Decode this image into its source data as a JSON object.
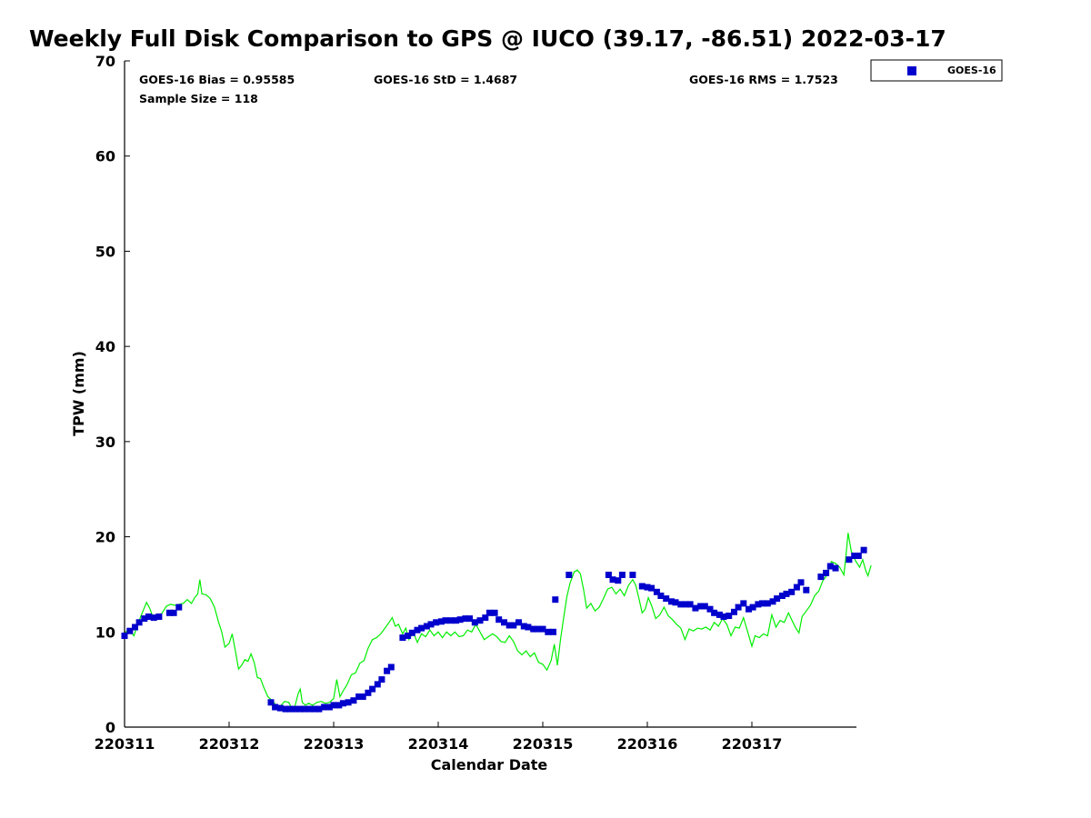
{
  "chart_data": {
    "type": "scatter",
    "title": "Weekly Full Disk Comparison to GPS @ IUCO (39.17, -86.51) 2022-03-17",
    "xlabel": "Calendar Date",
    "ylabel": "TPW (mm)",
    "ylim": [
      0,
      70
    ],
    "yticks": [
      0,
      10,
      20,
      30,
      40,
      50,
      60,
      70
    ],
    "xlim": [
      "220311",
      "220317 ~23:00"
    ],
    "xticks": [
      "220311",
      "220312",
      "220313",
      "220314",
      "220315",
      "220316",
      "220317"
    ],
    "grid": false,
    "legend_position": "upper-right-outside",
    "stats": {
      "bias": "GOES-16 Bias = 0.95585",
      "std": "GOES-16 StD = 1.4687",
      "rms": "GOES-16 RMS = 1.7523",
      "sample": "Sample Size = 118"
    },
    "series": [
      {
        "name": "GOES-16",
        "style": "square-markers",
        "color": "#0000cc",
        "points": [
          [
            0.0,
            9.6
          ],
          [
            0.05,
            10.1
          ],
          [
            0.1,
            10.5
          ],
          [
            0.14,
            11.0
          ],
          [
            0.19,
            11.4
          ],
          [
            0.23,
            11.6
          ],
          [
            0.28,
            11.5
          ],
          [
            0.33,
            11.6
          ],
          [
            0.43,
            12.0
          ],
          [
            0.47,
            12.0
          ],
          [
            0.52,
            12.6
          ],
          [
            1.4,
            2.6
          ],
          [
            1.44,
            2.1
          ],
          [
            1.49,
            2.0
          ],
          [
            1.54,
            1.9
          ],
          [
            1.58,
            1.9
          ],
          [
            1.63,
            1.9
          ],
          [
            1.68,
            1.9
          ],
          [
            1.72,
            1.9
          ],
          [
            1.77,
            1.9
          ],
          [
            1.82,
            1.9
          ],
          [
            1.86,
            1.9
          ],
          [
            1.91,
            2.1
          ],
          [
            1.96,
            2.1
          ],
          [
            2.0,
            2.3
          ],
          [
            2.05,
            2.3
          ],
          [
            2.09,
            2.5
          ],
          [
            2.14,
            2.6
          ],
          [
            2.19,
            2.8
          ],
          [
            2.24,
            3.2
          ],
          [
            2.28,
            3.2
          ],
          [
            2.33,
            3.6
          ],
          [
            2.37,
            4.0
          ],
          [
            2.42,
            4.5
          ],
          [
            2.46,
            5.0
          ],
          [
            2.51,
            5.9
          ],
          [
            2.55,
            6.3
          ],
          [
            2.66,
            9.4
          ],
          [
            2.71,
            9.6
          ],
          [
            2.75,
            9.9
          ],
          [
            2.8,
            10.2
          ],
          [
            2.84,
            10.4
          ],
          [
            2.89,
            10.6
          ],
          [
            2.93,
            10.8
          ],
          [
            2.98,
            11.0
          ],
          [
            3.03,
            11.1
          ],
          [
            3.07,
            11.2
          ],
          [
            3.12,
            11.2
          ],
          [
            3.17,
            11.2
          ],
          [
            3.21,
            11.3
          ],
          [
            3.26,
            11.4
          ],
          [
            3.3,
            11.4
          ],
          [
            3.35,
            11.0
          ],
          [
            3.4,
            11.2
          ],
          [
            3.45,
            11.5
          ],
          [
            3.49,
            12.0
          ],
          [
            3.54,
            12.0
          ],
          [
            3.58,
            11.3
          ],
          [
            3.63,
            11.0
          ],
          [
            3.68,
            10.7
          ],
          [
            3.72,
            10.7
          ],
          [
            3.77,
            11.0
          ],
          [
            3.82,
            10.6
          ],
          [
            3.86,
            10.5
          ],
          [
            3.91,
            10.3
          ],
          [
            3.95,
            10.3
          ],
          [
            4.0,
            10.3
          ],
          [
            4.05,
            10.0
          ],
          [
            4.1,
            10.0
          ],
          [
            4.12,
            13.4
          ],
          [
            4.25,
            16.0
          ],
          [
            4.63,
            16.0
          ],
          [
            4.67,
            15.5
          ],
          [
            4.72,
            15.4
          ],
          [
            4.76,
            16.0
          ],
          [
            4.86,
            16.0
          ],
          [
            4.95,
            14.8
          ],
          [
            5.0,
            14.7
          ],
          [
            5.04,
            14.6
          ],
          [
            5.09,
            14.2
          ],
          [
            5.13,
            13.8
          ],
          [
            5.18,
            13.5
          ],
          [
            5.23,
            13.2
          ],
          [
            5.27,
            13.1
          ],
          [
            5.32,
            12.9
          ],
          [
            5.37,
            12.9
          ],
          [
            5.41,
            12.9
          ],
          [
            5.46,
            12.5
          ],
          [
            5.51,
            12.7
          ],
          [
            5.55,
            12.7
          ],
          [
            5.6,
            12.4
          ],
          [
            5.64,
            12.0
          ],
          [
            5.69,
            11.8
          ],
          [
            5.73,
            11.6
          ],
          [
            5.78,
            11.7
          ],
          [
            5.83,
            12.1
          ],
          [
            5.87,
            12.6
          ],
          [
            5.92,
            13.0
          ],
          [
            5.97,
            12.4
          ],
          [
            6.01,
            12.6
          ],
          [
            6.06,
            12.9
          ],
          [
            6.1,
            13.0
          ],
          [
            6.15,
            13.0
          ],
          [
            6.2,
            13.2
          ],
          [
            6.24,
            13.5
          ],
          [
            6.29,
            13.8
          ],
          [
            6.33,
            14.0
          ],
          [
            6.38,
            14.2
          ],
          [
            6.43,
            14.7
          ],
          [
            6.47,
            15.2
          ],
          [
            6.52,
            14.4
          ],
          [
            6.66,
            15.8
          ],
          [
            6.71,
            16.2
          ],
          [
            6.75,
            16.9
          ],
          [
            6.8,
            16.7
          ],
          [
            6.93,
            17.6
          ],
          [
            6.98,
            18.0
          ],
          [
            7.02,
            18.0
          ],
          [
            7.07,
            18.6
          ]
        ]
      },
      {
        "name": "",
        "style": "line",
        "color": "#00ee00",
        "points": [
          [
            0.0,
            9.8
          ],
          [
            0.03,
            10.2
          ],
          [
            0.06,
            10.0
          ],
          [
            0.09,
            9.6
          ],
          [
            0.12,
            10.6
          ],
          [
            0.15,
            11.5
          ],
          [
            0.18,
            12.3
          ],
          [
            0.21,
            13.1
          ],
          [
            0.24,
            12.5
          ],
          [
            0.27,
            11.6
          ],
          [
            0.3,
            11.8
          ],
          [
            0.33,
            11.4
          ],
          [
            0.36,
            12.0
          ],
          [
            0.4,
            12.7
          ],
          [
            0.44,
            12.9
          ],
          [
            0.48,
            12.8
          ],
          [
            0.52,
            12.9
          ],
          [
            0.56,
            13.0
          ],
          [
            0.6,
            13.4
          ],
          [
            0.64,
            13.0
          ],
          [
            0.67,
            13.6
          ],
          [
            0.7,
            14.0
          ],
          [
            0.72,
            15.5
          ],
          [
            0.74,
            14.0
          ],
          [
            0.78,
            13.9
          ],
          [
            0.82,
            13.5
          ],
          [
            0.86,
            12.6
          ],
          [
            0.9,
            11.0
          ],
          [
            0.93,
            10.0
          ],
          [
            0.96,
            8.4
          ],
          [
            1.0,
            8.8
          ],
          [
            1.03,
            9.8
          ],
          [
            1.06,
            8.0
          ],
          [
            1.09,
            6.1
          ],
          [
            1.12,
            6.5
          ],
          [
            1.15,
            7.1
          ],
          [
            1.18,
            6.9
          ],
          [
            1.21,
            7.7
          ],
          [
            1.24,
            6.8
          ],
          [
            1.27,
            5.2
          ],
          [
            1.3,
            5.1
          ],
          [
            1.33,
            4.2
          ],
          [
            1.37,
            3.2
          ],
          [
            1.41,
            2.8
          ],
          [
            1.45,
            2.3
          ],
          [
            1.49,
            2.2
          ],
          [
            1.53,
            2.7
          ],
          [
            1.57,
            2.6
          ],
          [
            1.6,
            2.0
          ],
          [
            1.63,
            2.2
          ],
          [
            1.66,
            3.5
          ],
          [
            1.68,
            4.0
          ],
          [
            1.7,
            2.6
          ],
          [
            1.73,
            2.3
          ],
          [
            1.76,
            2.5
          ],
          [
            1.8,
            2.3
          ],
          [
            1.84,
            2.6
          ],
          [
            1.88,
            2.7
          ],
          [
            1.92,
            2.5
          ],
          [
            1.96,
            2.6
          ],
          [
            2.0,
            3.0
          ],
          [
            2.03,
            5.0
          ],
          [
            2.06,
            3.2
          ],
          [
            2.09,
            3.8
          ],
          [
            2.13,
            4.5
          ],
          [
            2.17,
            5.5
          ],
          [
            2.21,
            5.7
          ],
          [
            2.25,
            6.7
          ],
          [
            2.29,
            7.0
          ],
          [
            2.33,
            8.3
          ],
          [
            2.37,
            9.2
          ],
          [
            2.41,
            9.4
          ],
          [
            2.45,
            9.8
          ],
          [
            2.49,
            10.4
          ],
          [
            2.53,
            11.0
          ],
          [
            2.56,
            11.5
          ],
          [
            2.59,
            10.6
          ],
          [
            2.62,
            10.8
          ],
          [
            2.66,
            9.8
          ],
          [
            2.69,
            10.4
          ],
          [
            2.72,
            9.2
          ],
          [
            2.76,
            10.0
          ],
          [
            2.8,
            8.9
          ],
          [
            2.84,
            9.8
          ],
          [
            2.88,
            9.5
          ],
          [
            2.92,
            10.2
          ],
          [
            2.96,
            9.6
          ],
          [
            3.0,
            10.0
          ],
          [
            3.04,
            9.4
          ],
          [
            3.08,
            10.0
          ],
          [
            3.12,
            9.6
          ],
          [
            3.16,
            10.0
          ],
          [
            3.2,
            9.5
          ],
          [
            3.24,
            9.6
          ],
          [
            3.28,
            10.2
          ],
          [
            3.32,
            10.0
          ],
          [
            3.36,
            10.8
          ],
          [
            3.4,
            10.0
          ],
          [
            3.44,
            9.2
          ],
          [
            3.48,
            9.5
          ],
          [
            3.52,
            9.8
          ],
          [
            3.56,
            9.5
          ],
          [
            3.6,
            9.0
          ],
          [
            3.64,
            8.9
          ],
          [
            3.68,
            9.6
          ],
          [
            3.72,
            9.0
          ],
          [
            3.76,
            8.0
          ],
          [
            3.8,
            7.6
          ],
          [
            3.84,
            8.0
          ],
          [
            3.88,
            7.4
          ],
          [
            3.92,
            7.8
          ],
          [
            3.96,
            6.8
          ],
          [
            4.0,
            6.6
          ],
          [
            4.04,
            6.0
          ],
          [
            4.08,
            7.0
          ],
          [
            4.11,
            8.7
          ],
          [
            4.14,
            6.5
          ],
          [
            4.17,
            9.2
          ],
          [
            4.2,
            11.5
          ],
          [
            4.23,
            13.7
          ],
          [
            4.26,
            15.1
          ],
          [
            4.3,
            16.3
          ],
          [
            4.33,
            16.5
          ],
          [
            4.36,
            16.1
          ],
          [
            4.39,
            14.5
          ],
          [
            4.42,
            12.5
          ],
          [
            4.46,
            13.0
          ],
          [
            4.5,
            12.2
          ],
          [
            4.54,
            12.6
          ],
          [
            4.58,
            13.5
          ],
          [
            4.62,
            14.5
          ],
          [
            4.66,
            14.7
          ],
          [
            4.7,
            14.0
          ],
          [
            4.74,
            14.5
          ],
          [
            4.78,
            13.8
          ],
          [
            4.82,
            14.9
          ],
          [
            4.86,
            15.5
          ],
          [
            4.89,
            14.9
          ],
          [
            4.92,
            13.5
          ],
          [
            4.95,
            12.0
          ],
          [
            4.98,
            12.4
          ],
          [
            5.01,
            13.6
          ],
          [
            5.04,
            12.8
          ],
          [
            5.08,
            11.4
          ],
          [
            5.12,
            11.8
          ],
          [
            5.16,
            12.6
          ],
          [
            5.2,
            11.7
          ],
          [
            5.24,
            11.3
          ],
          [
            5.28,
            10.8
          ],
          [
            5.32,
            10.4
          ],
          [
            5.36,
            9.2
          ],
          [
            5.4,
            10.3
          ],
          [
            5.44,
            10.1
          ],
          [
            5.48,
            10.4
          ],
          [
            5.52,
            10.3
          ],
          [
            5.56,
            10.5
          ],
          [
            5.6,
            10.2
          ],
          [
            5.64,
            11.0
          ],
          [
            5.68,
            10.6
          ],
          [
            5.72,
            11.4
          ],
          [
            5.76,
            10.8
          ],
          [
            5.8,
            9.6
          ],
          [
            5.84,
            10.5
          ],
          [
            5.88,
            10.4
          ],
          [
            5.92,
            11.5
          ],
          [
            5.96,
            10.0
          ],
          [
            6.0,
            8.5
          ],
          [
            6.03,
            9.6
          ],
          [
            6.07,
            9.4
          ],
          [
            6.11,
            9.8
          ],
          [
            6.15,
            9.6
          ],
          [
            6.19,
            11.8
          ],
          [
            6.23,
            10.5
          ],
          [
            6.27,
            11.2
          ],
          [
            6.31,
            11.0
          ],
          [
            6.35,
            12.0
          ],
          [
            6.38,
            11.3
          ],
          [
            6.42,
            10.4
          ],
          [
            6.45,
            9.9
          ],
          [
            6.48,
            11.6
          ],
          [
            6.52,
            12.2
          ],
          [
            6.56,
            12.8
          ],
          [
            6.6,
            13.8
          ],
          [
            6.64,
            14.3
          ],
          [
            6.68,
            15.4
          ],
          [
            6.72,
            16.0
          ],
          [
            6.76,
            17.4
          ],
          [
            6.8,
            17.2
          ],
          [
            6.84,
            16.8
          ],
          [
            6.88,
            16.0
          ],
          [
            6.9,
            18.0
          ],
          [
            6.92,
            20.4
          ],
          [
            6.95,
            18.5
          ],
          [
            6.99,
            17.5
          ],
          [
            7.03,
            16.8
          ],
          [
            7.06,
            17.6
          ],
          [
            7.09,
            16.4
          ],
          [
            7.11,
            15.9
          ],
          [
            7.14,
            17.0
          ]
        ]
      }
    ]
  },
  "legend": {
    "label": "GOES-16"
  }
}
